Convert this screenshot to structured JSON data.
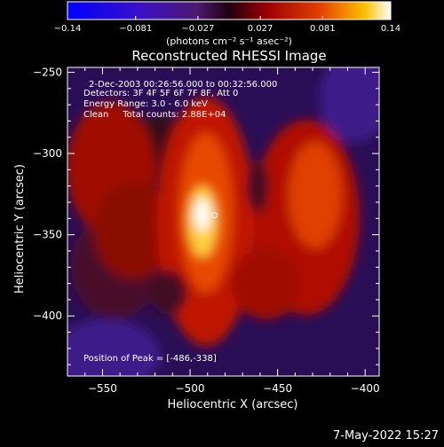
{
  "colorbar": {
    "ticks": [
      "-0.14",
      "-0.081",
      "-0.027",
      "0.027",
      "0.081",
      "0.14"
    ],
    "tick_values": [
      -0.14,
      -0.081,
      -0.027,
      0.027,
      0.081,
      0.14
    ],
    "range": [
      -0.14,
      0.14
    ],
    "unit_label": "(photons cm⁻² s⁻¹ asec⁻²)"
  },
  "chart_data": {
    "type": "heatmap",
    "title": "Reconstructed RHESSI Image",
    "xlabel": "Heliocentric X (arcsec)",
    "ylabel": "Heliocentric Y (arcsec)",
    "xlim": [
      -570,
      -392
    ],
    "ylim": [
      -437,
      -247
    ],
    "x_ticks": [
      "-550",
      "-500",
      "-450",
      "-400"
    ],
    "x_tick_values": [
      -550,
      -500,
      -450,
      -400
    ],
    "y_ticks": [
      "-250",
      "-300",
      "-350",
      "-400"
    ],
    "y_tick_values": [
      -250,
      -300,
      -350,
      -400
    ],
    "peak": [
      -486,
      -338
    ],
    "colormap": "hot-blue diverging (blue → purple → red → orange → yellow → white)",
    "info_lines": [
      "2-Dec-2003 00:26:56.000 to 00:32:56.000",
      "Detectors: 3F 4F 5F 6F 7F 8F, Att 0",
      "Energy Range: 3.0 - 6.0 keV",
      "Clean     Total counts: 2.88E+04"
    ],
    "peak_label": "Position of Peak = [-486,-338]"
  },
  "footer": {
    "timestamp": "7-May-2022 15:27"
  }
}
